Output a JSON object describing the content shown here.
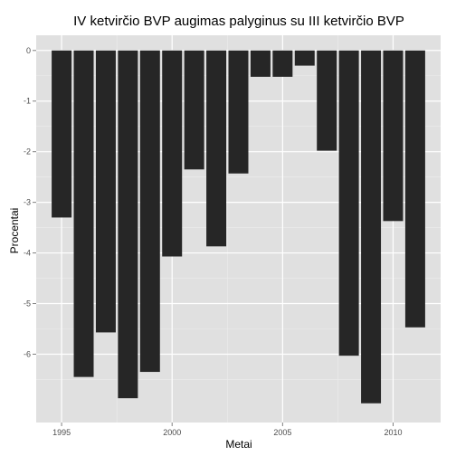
{
  "chart_data": {
    "type": "bar",
    "title": "IV ketvirčio BVP augimas palyginus su III ketvirčio BVP",
    "xlabel": "Metai",
    "ylabel": "Procentai",
    "x": [
      1995,
      1996,
      1997,
      1998,
      1999,
      2000,
      2001,
      2002,
      2003,
      2004,
      2005,
      2006,
      2007,
      2008,
      2009,
      2010,
      2011
    ],
    "values": [
      -3.3,
      -6.45,
      -5.57,
      -6.87,
      -6.35,
      -4.07,
      -2.35,
      -3.87,
      -2.43,
      -0.52,
      -0.52,
      -0.3,
      -1.98,
      -6.03,
      -6.97,
      -3.37,
      -5.47
    ],
    "xlim": [
      1993.85,
      2012.15
    ],
    "ylim": [
      -7.35,
      0.3
    ],
    "x_ticks": [
      {
        "value": 1995,
        "label": "1995"
      },
      {
        "value": 2000,
        "label": "2000"
      },
      {
        "value": 2005,
        "label": "2005"
      },
      {
        "value": 2010,
        "label": "2010"
      }
    ],
    "y_ticks": [
      {
        "value": 0,
        "label": "0"
      },
      {
        "value": -1,
        "label": "-1"
      },
      {
        "value": -2,
        "label": "-2"
      },
      {
        "value": -3,
        "label": "-3"
      },
      {
        "value": -4,
        "label": "-4"
      },
      {
        "value": -5,
        "label": "-5"
      },
      {
        "value": -6,
        "label": "-6"
      }
    ],
    "grid": true,
    "colors": {
      "panel": "#e0e0e0",
      "grid_major": "#ffffff",
      "grid_minor": "#ececec",
      "bar": "#262626"
    }
  }
}
